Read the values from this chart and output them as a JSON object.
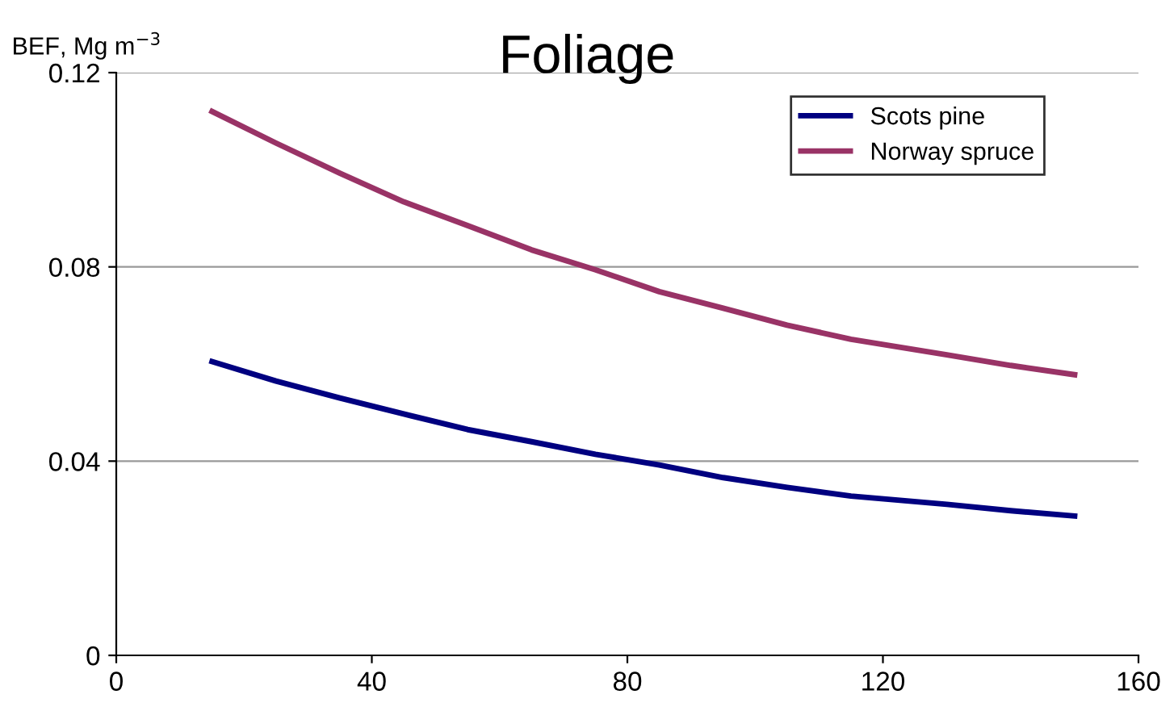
{
  "chart_data": {
    "type": "line",
    "title": "Foliage",
    "ylabel": "BEF, Mg m$^{−3}$",
    "xlim": [
      0,
      160
    ],
    "xticks": [
      0,
      40,
      80,
      120,
      160
    ],
    "ylim": [
      0,
      0.12
    ],
    "yticks": [
      0,
      0.04,
      0.08,
      0.12
    ],
    "grid": "y",
    "legend": "top right",
    "marker": "none",
    "line_style": "solid",
    "series": [
      {
        "name": "Scots pine",
        "color": "#000080",
        "x": [
          15,
          25,
          35,
          45,
          55,
          65,
          75,
          85,
          95,
          105,
          115,
          130,
          140,
          150
        ],
        "values": [
          0.0605,
          0.0565,
          0.053,
          0.0497,
          0.0465,
          0.044,
          0.0414,
          0.0392,
          0.0366,
          0.0346,
          0.0328,
          0.0311,
          0.0298,
          0.0287
        ]
      },
      {
        "name": "Norway spruce",
        "color": "#993366",
        "x": [
          15,
          25,
          35,
          45,
          55,
          65,
          75,
          85,
          95,
          105,
          115,
          130,
          140,
          150
        ],
        "values": [
          0.112,
          0.1055,
          0.0993,
          0.0934,
          0.0885,
          0.0835,
          0.0794,
          0.0749,
          0.0715,
          0.068,
          0.0651,
          0.0619,
          0.0597,
          0.0578
        ]
      }
    ]
  }
}
